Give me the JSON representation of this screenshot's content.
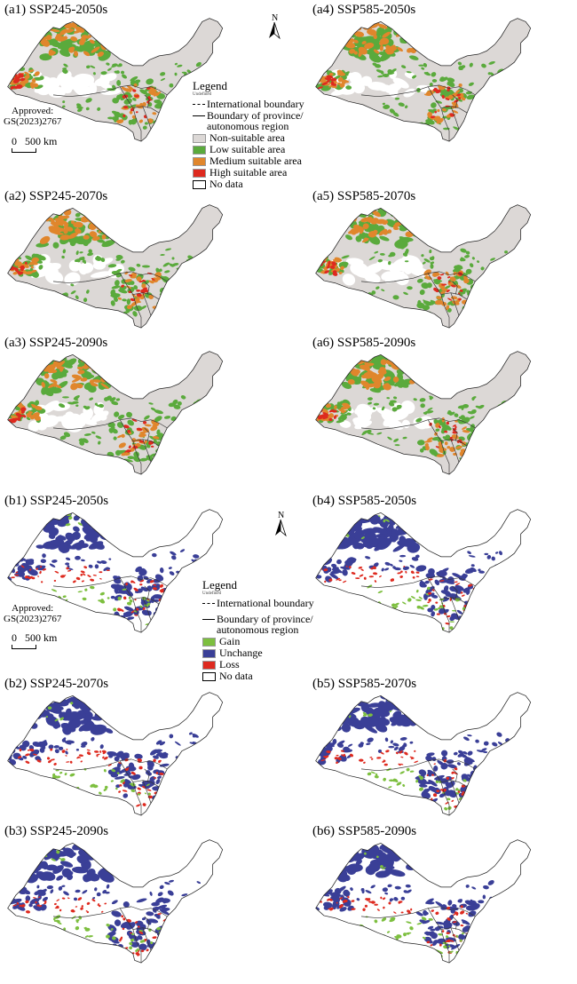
{
  "panels_a": [
    {
      "label": "(a1) SSP245-2050s",
      "seed": 3
    },
    {
      "label": "(a2) SSP245-2070s",
      "seed": 11
    },
    {
      "label": "(a3) SSP245-2090s",
      "seed": 19
    },
    {
      "label": "(a4) SSP585-2050s",
      "seed": 27
    },
    {
      "label": "(a5) SSP585-2070s",
      "seed": 35
    },
    {
      "label": "(a6) SSP585-2090s",
      "seed": 43
    }
  ],
  "panels_b": [
    {
      "label": "(b1) SSP245-2050s",
      "seed": 51
    },
    {
      "label": "(b2) SSP245-2070s",
      "seed": 59
    },
    {
      "label": "(b3) SSP245-2090s",
      "seed": 67
    },
    {
      "label": "(b4) SSP585-2050s",
      "seed": 75
    },
    {
      "label": "(b5) SSP585-2070s",
      "seed": 83
    },
    {
      "label": "(b6) SSP585-2090s",
      "seed": 91
    }
  ],
  "north": "N",
  "approval": {
    "line1": "Approved:",
    "line2": "GS(2023)2767"
  },
  "scale": {
    "zero": "0",
    "value": "500 km"
  },
  "legend_a": {
    "title": "Legend",
    "subtitle": "Undefined",
    "international": "International boundary",
    "province": "Boundary of province/\nautonomous region",
    "items": [
      {
        "label": "Non-suitable area",
        "color": "#dcd8d6"
      },
      {
        "label": "Low suitable area",
        "color": "#5aaa3c"
      },
      {
        "label": "Medium suitable area",
        "color": "#e0862c"
      },
      {
        "label": "High suitable area",
        "color": "#de2a1f"
      },
      {
        "label": "No data",
        "color": "#ffffff"
      }
    ]
  },
  "legend_b": {
    "title": "Legend",
    "subtitle": "Undefined",
    "international": "International boundary",
    "province": "Boundary of province/\nautonomous region",
    "items": [
      {
        "label": "Gain",
        "color": "#7dbf3f"
      },
      {
        "label": "Unchange",
        "color": "#3a3f97"
      },
      {
        "label": "Loss",
        "color": "#de2a1f"
      },
      {
        "label": "No data",
        "color": "#ffffff"
      }
    ]
  }
}
